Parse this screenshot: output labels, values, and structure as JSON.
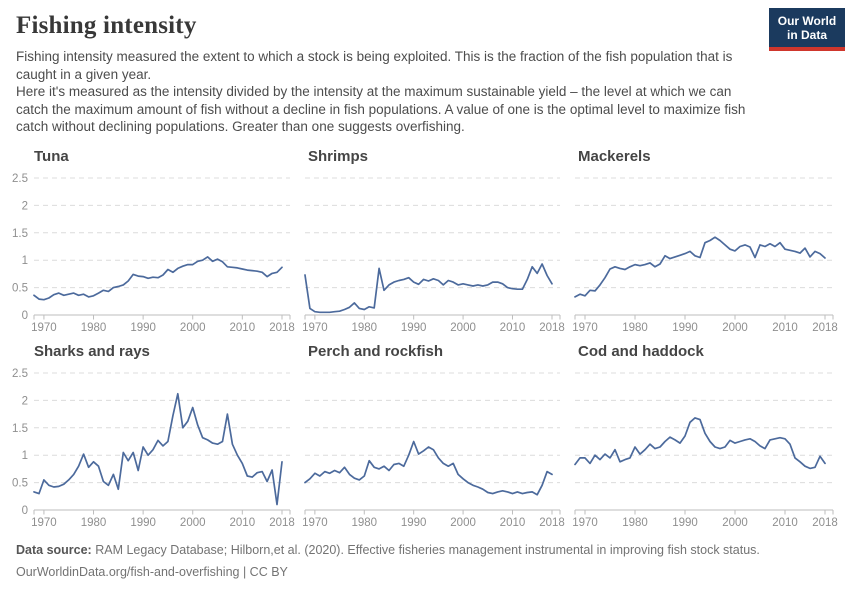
{
  "header": {
    "title": "Fishing intensity",
    "subtitle1": "Fishing intensity measured the extent to which a stock is being exploited. This is the fraction of the fish population that is caught in a given year.",
    "subtitle2": "Here it's measured as the intensity divided by the intensity at the maximum sustainable yield – the level at which we can catch the maximum amount of fish without a decline in fish populations. A value of one is the optimal level to maximize fish catch without declining populations. Greater than one suggests overfishing.",
    "logo": {
      "line1": "Our World",
      "line2": "in Data"
    }
  },
  "footer": {
    "source_label": "Data source:",
    "source_text": " RAM Legacy Database; Hilborn,et al. (2020). Effective fisheries management instrumental in improving fish stock status.",
    "url_line": "OurWorldinData.org/fish-and-overfishing | CC BY"
  },
  "colors": {
    "line": "#4c6a9c",
    "grid": "#dcdcdc",
    "axis": "#bdbdbd",
    "tick_label": "#8f8f8f",
    "logo_bg": "#1b3a5e",
    "logo_red": "#cf362c"
  },
  "chart_data": {
    "type": "line",
    "x_start": 1968,
    "x_end": 2018,
    "ylim": [
      0,
      2.5
    ],
    "y_ticks": [
      0,
      0.5,
      1,
      1.5,
      2,
      2.5
    ],
    "x_ticks": [
      1970,
      1980,
      1990,
      2000,
      2010,
      2018
    ],
    "grid": true,
    "legend": false,
    "charts": [
      {
        "title": "Tuna",
        "values": [
          0.36,
          0.29,
          0.28,
          0.31,
          0.37,
          0.4,
          0.36,
          0.38,
          0.4,
          0.36,
          0.38,
          0.33,
          0.35,
          0.4,
          0.45,
          0.43,
          0.5,
          0.52,
          0.55,
          0.62,
          0.74,
          0.71,
          0.7,
          0.67,
          0.69,
          0.68,
          0.73,
          0.83,
          0.78,
          0.85,
          0.89,
          0.92,
          0.92,
          0.98,
          1.0,
          1.06,
          0.98,
          1.02,
          0.97,
          0.88,
          0.87,
          0.86,
          0.84,
          0.82,
          0.81,
          0.8,
          0.78,
          0.7,
          0.76,
          0.78,
          0.87
        ]
      },
      {
        "title": "Shrimps",
        "values": [
          0.73,
          0.12,
          0.06,
          0.05,
          0.05,
          0.05,
          0.06,
          0.07,
          0.1,
          0.14,
          0.22,
          0.12,
          0.1,
          0.15,
          0.13,
          0.85,
          0.45,
          0.55,
          0.6,
          0.63,
          0.65,
          0.68,
          0.6,
          0.56,
          0.65,
          0.62,
          0.66,
          0.63,
          0.55,
          0.63,
          0.6,
          0.55,
          0.57,
          0.55,
          0.53,
          0.55,
          0.53,
          0.55,
          0.6,
          0.6,
          0.57,
          0.5,
          0.48,
          0.47,
          0.47,
          0.65,
          0.88,
          0.76,
          0.93,
          0.72,
          0.57
        ]
      },
      {
        "title": "Mackerels",
        "values": [
          0.33,
          0.38,
          0.35,
          0.45,
          0.44,
          0.55,
          0.68,
          0.84,
          0.88,
          0.85,
          0.83,
          0.88,
          0.92,
          0.9,
          0.92,
          0.95,
          0.88,
          0.93,
          1.08,
          1.03,
          1.06,
          1.09,
          1.12,
          1.16,
          1.08,
          1.05,
          1.32,
          1.36,
          1.42,
          1.36,
          1.28,
          1.2,
          1.17,
          1.25,
          1.28,
          1.24,
          1.05,
          1.28,
          1.25,
          1.3,
          1.25,
          1.32,
          1.2,
          1.18,
          1.16,
          1.13,
          1.22,
          1.06,
          1.16,
          1.12,
          1.04
        ]
      },
      {
        "title": "Sharks and rays",
        "values": [
          0.33,
          0.3,
          0.55,
          0.45,
          0.42,
          0.43,
          0.47,
          0.55,
          0.65,
          0.8,
          1.02,
          0.78,
          0.88,
          0.8,
          0.52,
          0.45,
          0.65,
          0.38,
          1.05,
          0.9,
          1.05,
          0.72,
          1.15,
          1.0,
          1.1,
          1.27,
          1.17,
          1.25,
          1.72,
          2.12,
          1.5,
          1.62,
          1.87,
          1.55,
          1.32,
          1.28,
          1.22,
          1.2,
          1.25,
          1.75,
          1.2,
          1.0,
          0.85,
          0.62,
          0.6,
          0.68,
          0.7,
          0.52,
          0.73,
          0.1,
          0.88
        ]
      },
      {
        "title": "Perch and rockfish",
        "values": [
          0.5,
          0.57,
          0.67,
          0.62,
          0.7,
          0.67,
          0.72,
          0.68,
          0.78,
          0.65,
          0.58,
          0.55,
          0.62,
          0.9,
          0.78,
          0.75,
          0.8,
          0.72,
          0.83,
          0.85,
          0.8,
          1.0,
          1.25,
          1.02,
          1.08,
          1.15,
          1.1,
          0.95,
          0.85,
          0.8,
          0.85,
          0.65,
          0.57,
          0.5,
          0.45,
          0.42,
          0.38,
          0.32,
          0.3,
          0.33,
          0.35,
          0.33,
          0.3,
          0.33,
          0.3,
          0.32,
          0.33,
          0.28,
          0.45,
          0.7,
          0.65
        ]
      },
      {
        "title": "Cod and haddock",
        "values": [
          0.83,
          0.95,
          0.95,
          0.85,
          1.0,
          0.92,
          1.02,
          0.95,
          1.1,
          0.88,
          0.92,
          0.95,
          1.15,
          1.02,
          1.1,
          1.2,
          1.12,
          1.15,
          1.25,
          1.33,
          1.28,
          1.22,
          1.35,
          1.6,
          1.68,
          1.65,
          1.4,
          1.25,
          1.15,
          1.12,
          1.15,
          1.27,
          1.22,
          1.25,
          1.28,
          1.3,
          1.25,
          1.17,
          1.12,
          1.28,
          1.3,
          1.32,
          1.3,
          1.2,
          0.95,
          0.88,
          0.8,
          0.76,
          0.78,
          0.98,
          0.85
        ]
      }
    ]
  }
}
